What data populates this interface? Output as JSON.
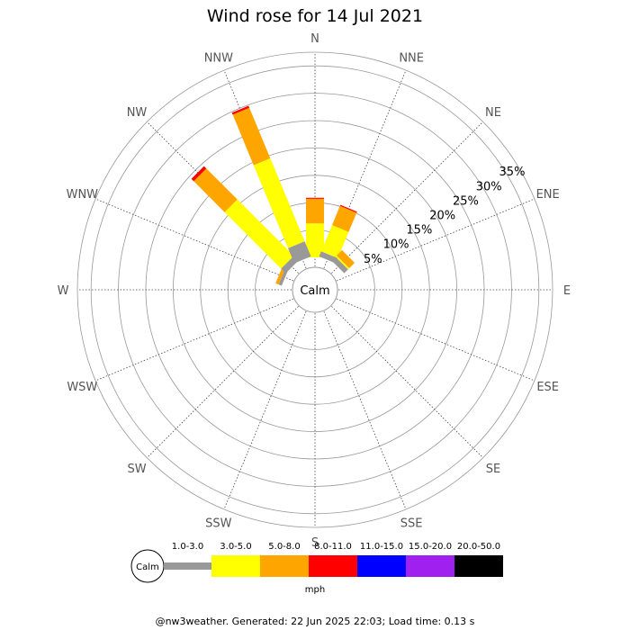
{
  "chart_data": {
    "type": "wind-rose",
    "title": "Wind rose for 14 Jul 2021",
    "calm_label": "Calm",
    "directions": [
      "N",
      "NNE",
      "NE",
      "ENE",
      "E",
      "ESE",
      "SE",
      "SSE",
      "S",
      "SSW",
      "SW",
      "WSW",
      "W",
      "WNW",
      "NW",
      "NNW"
    ],
    "ring_labels": [
      "5%",
      "10%",
      "15%",
      "20%",
      "25%",
      "30%",
      "35%"
    ],
    "ring_values": [
      5,
      10,
      15,
      20,
      25,
      30,
      35
    ],
    "r_max": 37.5,
    "calm_percent": 2.5,
    "speed_bins": [
      {
        "label": "1.0-3.0",
        "color": "#999999"
      },
      {
        "label": "3.0-5.0",
        "color": "#ffff00"
      },
      {
        "label": "5.0-8.0",
        "color": "#ffa500"
      },
      {
        "label": "8.0-11.0",
        "color": "#ff0000"
      },
      {
        "label": "11.0-15.0",
        "color": "#0000ff"
      },
      {
        "label": "15.0-20.0",
        "color": "#a020f0"
      },
      {
        "label": "20.0-50.0",
        "color": "#000000"
      }
    ],
    "bars": [
      {
        "direction": "N",
        "segments": [
          0,
          6.2,
          4.5,
          0.2,
          0,
          0,
          0
        ]
      },
      {
        "direction": "NNE",
        "segments": [
          1.0,
          5.2,
          3.8,
          0.2,
          0,
          0,
          0
        ]
      },
      {
        "direction": "NE",
        "segments": [
          1.0,
          0.3,
          1.4,
          0,
          0,
          0,
          0
        ]
      },
      {
        "direction": "WNW",
        "segments": [
          0.6,
          0,
          0.6,
          0,
          0,
          0,
          0
        ]
      },
      {
        "direction": "NW",
        "segments": [
          1.2,
          14.6,
          8.0,
          0.6,
          0,
          0,
          0
        ]
      },
      {
        "direction": "NNW",
        "segments": [
          3.0,
          16.4,
          10.0,
          0.4,
          0,
          0,
          0
        ]
      }
    ],
    "units": "mph"
  },
  "footer": "@nw3weather. Generated: 22 Jun 2025 22:03; Load time: 0.13 s"
}
